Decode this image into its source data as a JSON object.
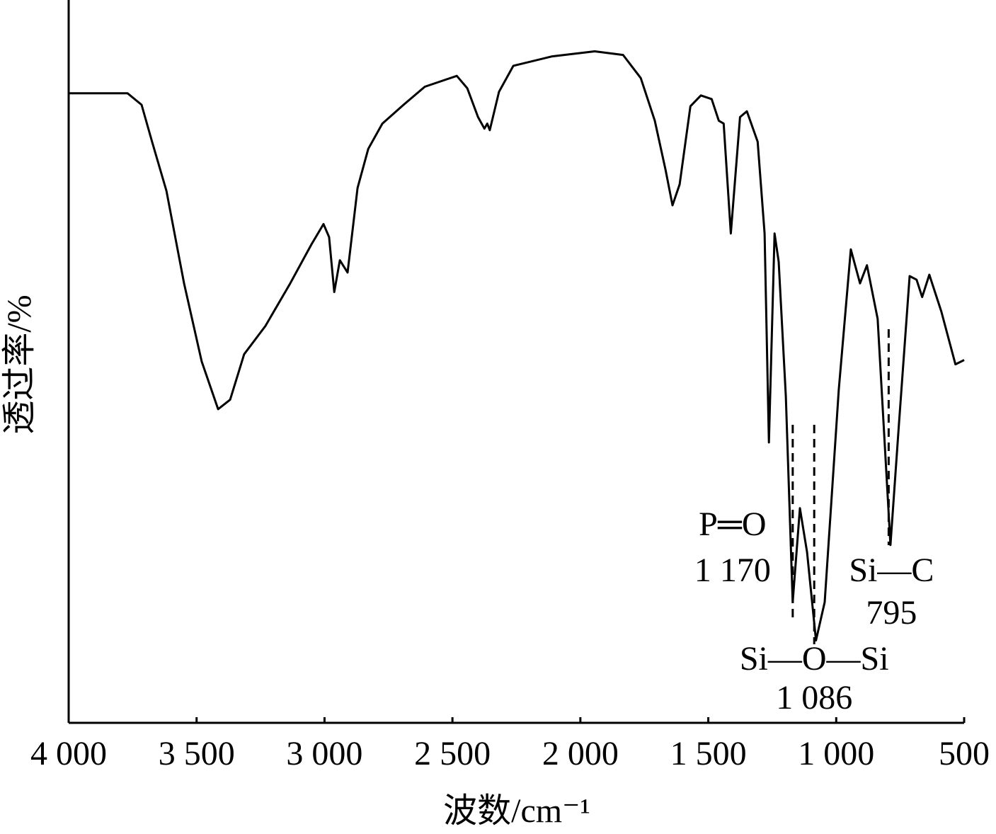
{
  "chart_data": {
    "type": "line",
    "xlabel": "波数/cm⁻¹",
    "ylabel": "透过率/%",
    "color": "#000000",
    "x": [
      4000,
      3770,
      3715,
      3674,
      3618,
      3549,
      3480,
      3416,
      3369,
      3314,
      3231,
      3134,
      3051,
      3004,
      2982,
      2962,
      2940,
      2910,
      2871,
      2829,
      2774,
      2691,
      2608,
      2483,
      2442,
      2400,
      2375,
      2364,
      2354,
      2318,
      2262,
      2110,
      1944,
      1833,
      1764,
      1709,
      1667,
      1640,
      1612,
      1570,
      1529,
      1487,
      1459,
      1440,
      1412,
      1376,
      1349,
      1307,
      1280,
      1263,
      1241,
      1225,
      1197,
      1170,
      1142,
      1114,
      1079,
      1045,
      990,
      943,
      907,
      880,
      838,
      788,
      755,
      713,
      686,
      664,
      636,
      589,
      534,
      500
    ],
    "values": [
      87.1,
      87.1,
      85.5,
      80.4,
      73.6,
      60.8,
      50.0,
      43.4,
      44.7,
      51.0,
      54.9,
      60.8,
      66.2,
      69.0,
      67.2,
      59.6,
      64.0,
      62.3,
      74.0,
      79.4,
      82.9,
      85.5,
      88.0,
      89.5,
      87.8,
      83.8,
      82.2,
      82.9,
      82.0,
      87.3,
      90.9,
      92.2,
      92.9,
      92.4,
      89.2,
      83.3,
      76.5,
      71.6,
      74.5,
      85.3,
      86.8,
      86.3,
      83.3,
      82.9,
      67.7,
      83.8,
      84.6,
      80.4,
      67.7,
      38.8,
      67.7,
      63.8,
      45.2,
      16.7,
      29.7,
      23.6,
      11.4,
      16.7,
      46.1,
      65.5,
      60.8,
      63.3,
      55.9,
      24.6,
      41.2,
      61.8,
      61.3,
      58.9,
      62.0,
      56.9,
      49.6,
      50.2
    ],
    "xlim": [
      4000,
      500
    ],
    "ylim": [
      0,
      100
    ],
    "xticks": [
      {
        "value": 4000,
        "label": "4 000"
      },
      {
        "value": 3500,
        "label": "3 500"
      },
      {
        "value": 3000,
        "label": "3 000"
      },
      {
        "value": 2500,
        "label": "2 500"
      },
      {
        "value": 2000,
        "label": "2 000"
      },
      {
        "value": 1500,
        "label": "1 500"
      },
      {
        "value": 1000,
        "label": "1 000"
      },
      500
    ],
    "annotations": [
      {
        "text": "P═O",
        "position": {
          "value": 1170,
          "label": "1 170"
        }
      },
      {
        "text": "Si—O—Si",
        "position": {
          "value": 1086,
          "label": "1 086"
        }
      },
      {
        "text": "Si—C",
        "position": {
          "value": 795,
          "label": "795"
        }
      }
    ]
  }
}
